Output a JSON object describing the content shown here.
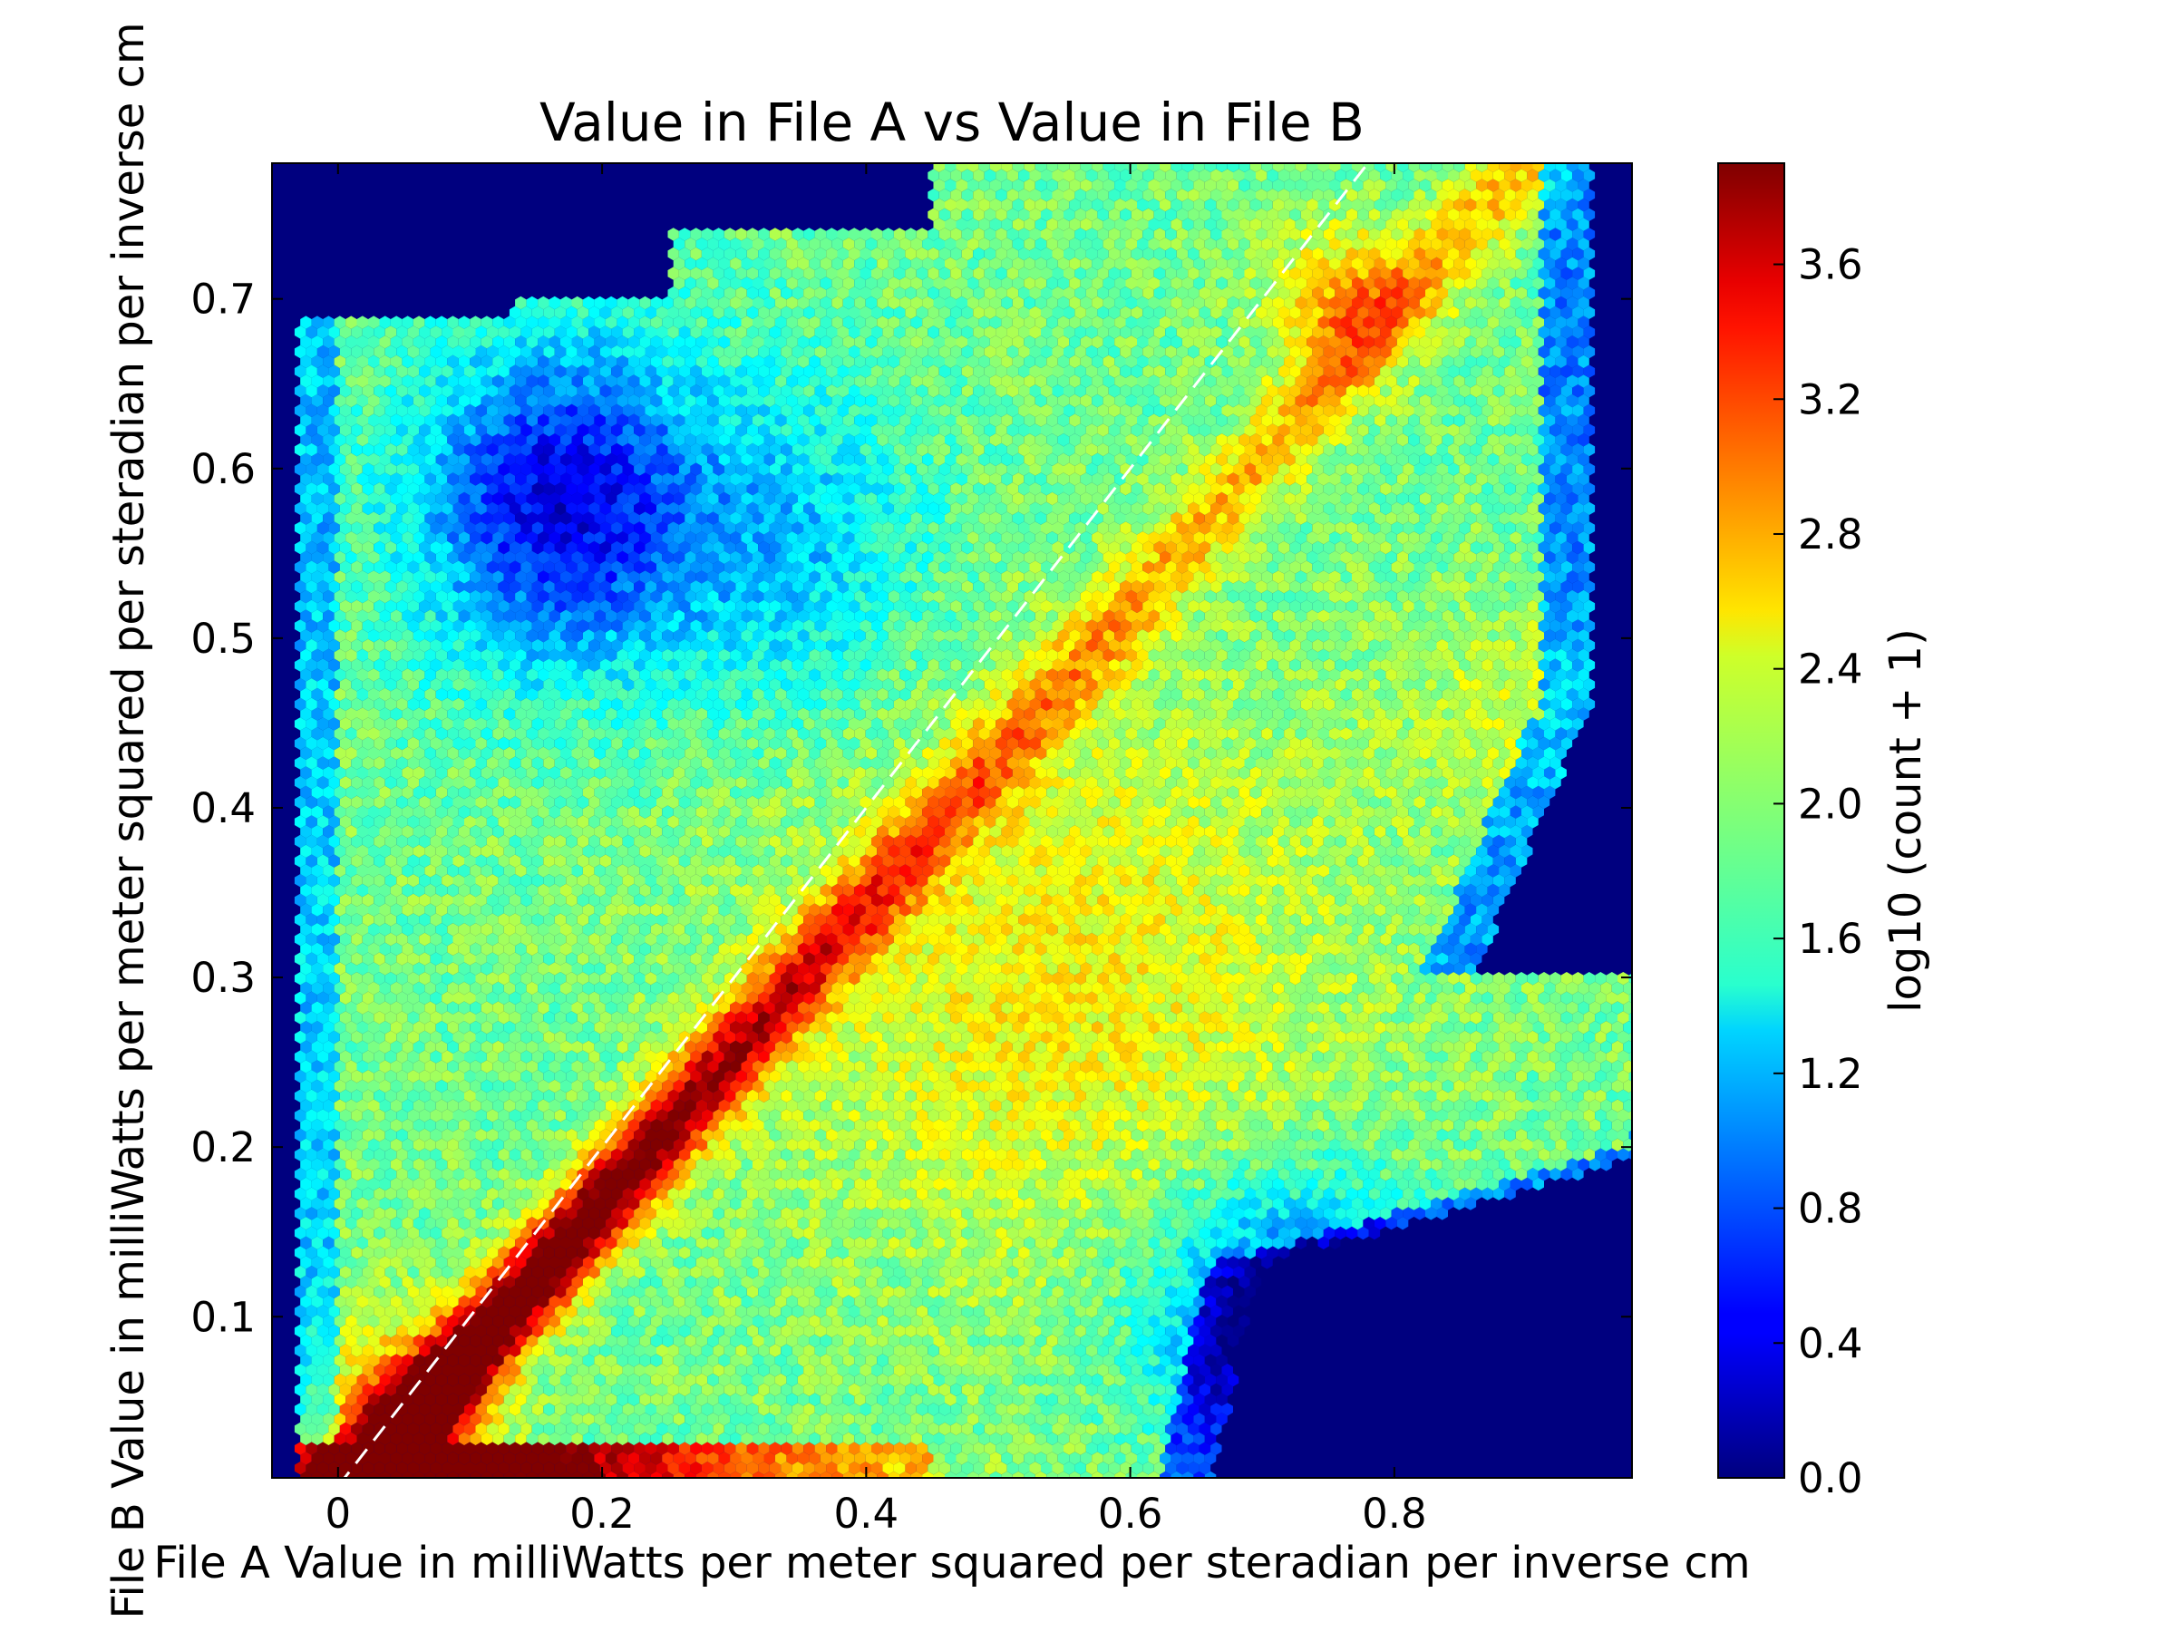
{
  "chart_data": {
    "type": "heatmap",
    "subtype": "hexbin",
    "title": "Value in File A vs Value in File B",
    "xlabel": "File A Value in milliWatts per meter squared per steradian per inverse cm",
    "ylabel": "File B Value in milliWatts per meter squared per steradian per inverse cm",
    "xlim": [
      -0.05,
      0.98
    ],
    "ylim": [
      0.005,
      0.78
    ],
    "x_ticks": [
      0.0,
      0.2,
      0.4,
      0.6,
      0.8
    ],
    "x_tick_labels": [
      "0",
      "0.2",
      "0.4",
      "0.6",
      "0.8"
    ],
    "y_ticks": [
      0.1,
      0.2,
      0.3,
      0.4,
      0.5,
      0.6,
      0.7
    ],
    "y_tick_labels": [
      "0.1",
      "0.2",
      "0.3",
      "0.4",
      "0.5",
      "0.6",
      "0.7"
    ],
    "grid": false,
    "colormap": "jet",
    "background_color": "#00007f",
    "reference_line": {
      "x": [
        0.0,
        0.78
      ],
      "y": [
        0.0,
        0.78
      ],
      "color": "#ffffff",
      "style": "dashed"
    },
    "colorbar": {
      "label": "log10 (count + 1)",
      "range": [
        0.0,
        3.9
      ],
      "ticks": [
        0.0,
        0.4,
        0.8,
        1.2,
        1.6,
        2.0,
        2.4,
        2.8,
        3.2,
        3.6
      ],
      "tick_labels": [
        "0.0",
        "0.4",
        "0.8",
        "1.2",
        "1.6",
        "2.0",
        "2.4",
        "2.8",
        "3.2",
        "3.6"
      ]
    },
    "density_regions": [
      {
        "x": [
          0.0,
          0.42
        ],
        "y": [
          0.01,
          0.02
        ],
        "value": 3.7
      },
      {
        "x": [
          0.05,
          0.25
        ],
        "y": [
          0.02,
          0.12
        ],
        "value": 3.5
      },
      {
        "x": [
          0.2,
          0.3
        ],
        "y": [
          0.15,
          0.25
        ],
        "value": 3.1
      },
      {
        "x": [
          0.33,
          0.4
        ],
        "y": [
          0.3,
          0.35
        ],
        "value": 3.0
      },
      {
        "x": [
          0.4,
          0.9
        ],
        "y": [
          0.2,
          0.5
        ],
        "value": 2.3
      },
      {
        "x": [
          0.7,
          0.8
        ],
        "y": [
          0.62,
          0.74
        ],
        "value": 2.9
      },
      {
        "x": [
          0.05,
          0.35
        ],
        "y": [
          0.5,
          0.69
        ],
        "value": 0.5
      },
      {
        "x": [
          0.65,
          0.85
        ],
        "y": [
          0.02,
          0.15
        ],
        "value": 0.0
      }
    ]
  }
}
